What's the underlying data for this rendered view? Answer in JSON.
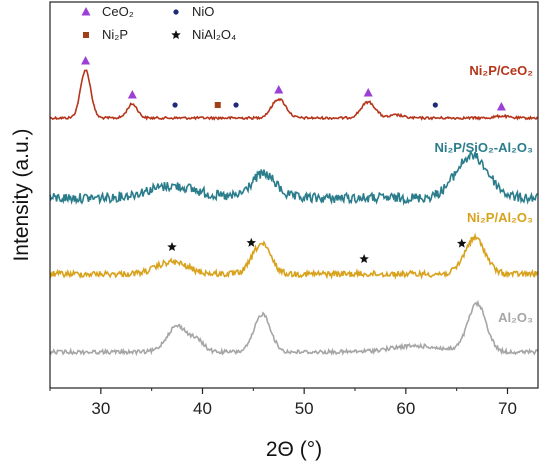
{
  "chart_data": {
    "type": "line",
    "xlabel": "2Θ (°)",
    "ylabel": "Intensity (a.u.)",
    "xlim": [
      25,
      73
    ],
    "xticks": [
      30,
      40,
      50,
      60,
      70
    ],
    "yticks_shown": false,
    "grid": false,
    "legend": {
      "placement": "top-left",
      "entries": [
        {
          "symbol": "triangle",
          "color": "#9b3fd6",
          "label": "CeO₂"
        },
        {
          "symbol": "circle",
          "color": "#1f2b78",
          "label": "NiO"
        },
        {
          "symbol": "square",
          "color": "#a0401a",
          "label": "Ni₂P"
        },
        {
          "symbol": "star",
          "color": "#111111",
          "label": "NiAl₂O₄"
        }
      ]
    },
    "series": [
      {
        "name": "Ni₂P/CeO₂",
        "color": "#b5351b",
        "baseline": 118,
        "noise": 1.2,
        "peaks": [
          {
            "x": 28.5,
            "height": 48,
            "width": 0.5
          },
          {
            "x": 33.1,
            "height": 14,
            "width": 0.5
          },
          {
            "x": 47.5,
            "height": 19,
            "width": 0.7
          },
          {
            "x": 56.3,
            "height": 16,
            "width": 0.7
          },
          {
            "x": 59.1,
            "height": 3,
            "width": 0.6
          },
          {
            "x": 69.4,
            "height": 2,
            "width": 0.6
          }
        ],
        "markers": [
          {
            "x": 28.5,
            "symbol": "triangle"
          },
          {
            "x": 33.1,
            "symbol": "triangle"
          },
          {
            "x": 37.3,
            "symbol": "circle"
          },
          {
            "x": 41.5,
            "symbol": "square"
          },
          {
            "x": 43.3,
            "symbol": "circle"
          },
          {
            "x": 47.5,
            "symbol": "triangle"
          },
          {
            "x": 56.3,
            "symbol": "triangle"
          },
          {
            "x": 62.9,
            "symbol": "circle"
          },
          {
            "x": 69.4,
            "symbol": "triangle"
          }
        ]
      },
      {
        "name": "Ni₂P/SiO₂-Al₂O₃",
        "color": "#2b7d8c",
        "baseline": 198,
        "noise": 5,
        "peaks": [
          {
            "x": 37,
            "height": 12,
            "width": 2.5
          },
          {
            "x": 46,
            "height": 24,
            "width": 1.2
          },
          {
            "x": 66.5,
            "height": 42,
            "width": 1.6
          }
        ],
        "markers": []
      },
      {
        "name": "Ni₂P/Al₂O₃",
        "color": "#d9a21c",
        "baseline": 274,
        "noise": 3,
        "peaks": [
          {
            "x": 37,
            "height": 12,
            "width": 1.5
          },
          {
            "x": 45.8,
            "height": 30,
            "width": 0.9
          },
          {
            "x": 66.8,
            "height": 36,
            "width": 1.0
          }
        ],
        "markers": [
          {
            "x": 37.0,
            "symbol": "star"
          },
          {
            "x": 44.8,
            "symbol": "star"
          },
          {
            "x": 55.9,
            "symbol": "star"
          },
          {
            "x": 65.5,
            "symbol": "star"
          }
        ]
      },
      {
        "name": "Al₂O₃",
        "color": "#a6a6a6",
        "baseline": 352,
        "noise": 2,
        "peaks": [
          {
            "x": 37.5,
            "height": 26,
            "width": 1.0
          },
          {
            "x": 39.5,
            "height": 10,
            "width": 0.7
          },
          {
            "x": 45.9,
            "height": 38,
            "width": 0.8
          },
          {
            "x": 61,
            "height": 6,
            "width": 2.5
          },
          {
            "x": 67,
            "height": 48,
            "width": 0.9
          }
        ],
        "markers": []
      }
    ]
  }
}
